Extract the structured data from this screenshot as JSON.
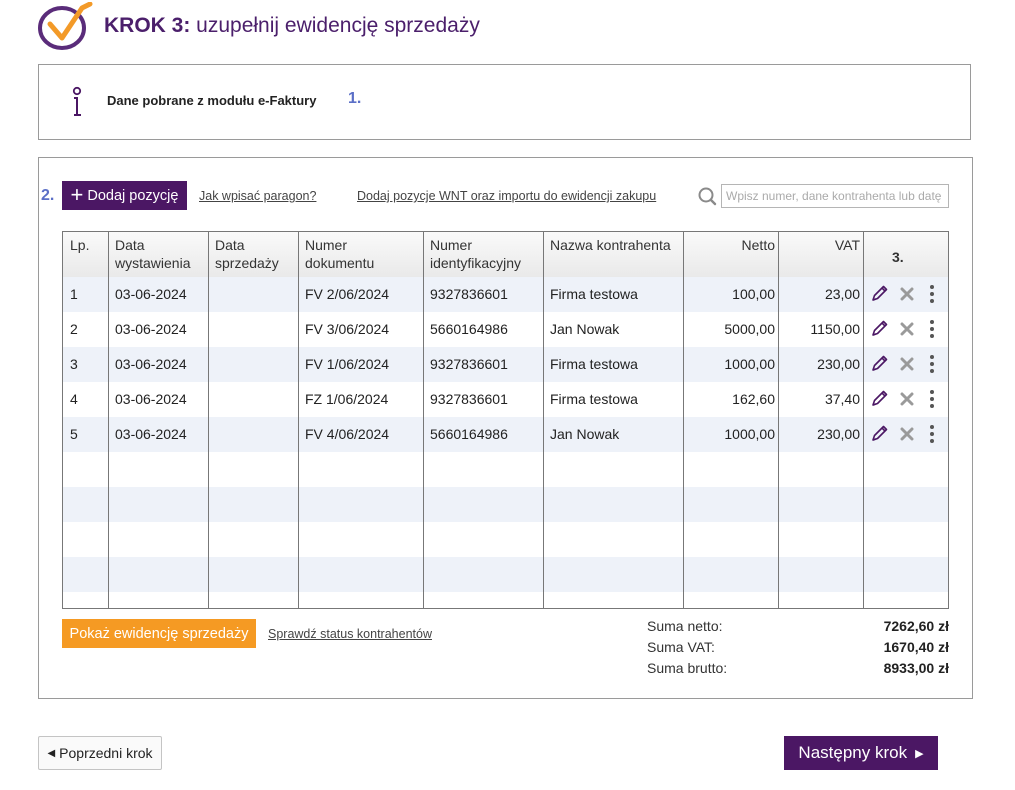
{
  "header": {
    "title_bold": "KROK 3:",
    "title_rest": " uzupełnij ewidencję sprzedaży"
  },
  "info": {
    "text": "Dane pobrane z modułu e-Faktury",
    "step_marker": "1."
  },
  "toolbar": {
    "step_marker": "2.",
    "add_label": "Dodaj pozycję",
    "link_paragon": "Jak wpisać paragon?",
    "link_wnt": "Dodaj pozycje WNT oraz importu do ewidencji zakupu",
    "search_placeholder": "Wpisz numer, dane kontrahenta lub datę"
  },
  "table": {
    "headers": {
      "lp": "Lp.",
      "data_wyst_1": "Data",
      "data_wyst_2": "wystawienia",
      "data_sprz_1": "Data",
      "data_sprz_2": "sprzedaży",
      "nr_dok_1": "Numer",
      "nr_dok_2": "dokumentu",
      "nr_id_1": "Numer",
      "nr_id_2": "identyfikacyjny",
      "kontrahent": "Nazwa kontrahenta",
      "netto": "Netto",
      "vat": "VAT",
      "actions_step": "3."
    },
    "rows": [
      {
        "lp": "1",
        "data_wyst": "03-06-2024",
        "data_sprz": "",
        "nr_dok": "FV 2/06/2024",
        "nr_id": "9327836601",
        "kontrahent": "Firma testowa",
        "netto": "100,00",
        "vat": "23,00"
      },
      {
        "lp": "2",
        "data_wyst": "03-06-2024",
        "data_sprz": "",
        "nr_dok": "FV 3/06/2024",
        "nr_id": "5660164986",
        "kontrahent": "Jan Nowak",
        "netto": "5000,00",
        "vat": "1150,00"
      },
      {
        "lp": "3",
        "data_wyst": "03-06-2024",
        "data_sprz": "",
        "nr_dok": "FV 1/06/2024",
        "nr_id": "9327836601",
        "kontrahent": "Firma testowa",
        "netto": "1000,00",
        "vat": "230,00"
      },
      {
        "lp": "4",
        "data_wyst": "03-06-2024",
        "data_sprz": "",
        "nr_dok": "FZ 1/06/2024",
        "nr_id": "9327836601",
        "kontrahent": "Firma testowa",
        "netto": "162,60",
        "vat": "37,40"
      },
      {
        "lp": "5",
        "data_wyst": "03-06-2024",
        "data_sprz": "",
        "nr_dok": "FV 4/06/2024",
        "nr_id": "5660164986",
        "kontrahent": "Jan Nowak",
        "netto": "1000,00",
        "vat": "230,00"
      }
    ]
  },
  "footer": {
    "show_label": "Pokaż ewidencję sprzedaży",
    "status_link": "Sprawdź status kontrahentów",
    "sum_netto_label": "Suma netto:",
    "sum_netto_value": "7262,60 zł",
    "sum_vat_label": "Suma VAT:",
    "sum_vat_value": "1670,40 zł",
    "sum_brutto_label": "Suma brutto:",
    "sum_brutto_value": "8933,00 zł"
  },
  "nav": {
    "prev_label": "Poprzedni krok",
    "next_label": "Następny krok"
  },
  "colors": {
    "brand_purple": "#4b1764",
    "accent_orange": "#f59a23",
    "step_marker_blue": "#5b6fc7",
    "row_shade": "#eef2f9"
  },
  "icons": [
    "checkmark-logo-icon",
    "info-icon",
    "plus-icon",
    "search-icon",
    "pencil-icon",
    "delete-x-icon",
    "kebab-menu-icon",
    "triangle-left-icon",
    "triangle-right-icon"
  ]
}
